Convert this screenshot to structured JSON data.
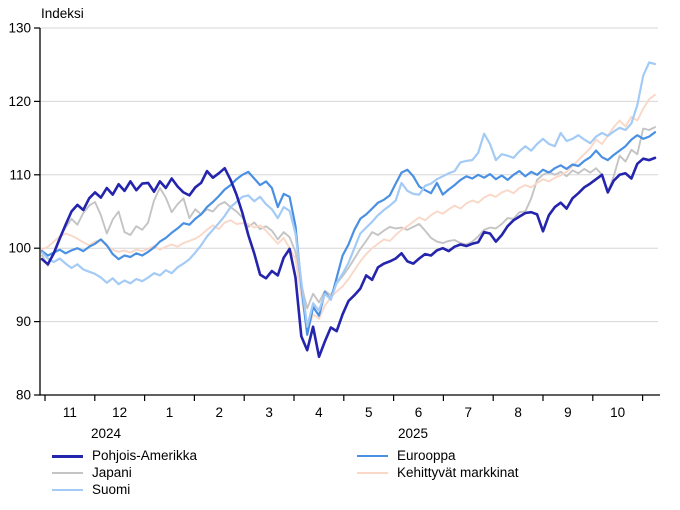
{
  "chart_data": {
    "type": "line",
    "title": "Indeksi",
    "grid": "horizontal",
    "legend_position": "bottom",
    "y_axis": {
      "min": 80,
      "max": 130,
      "step": 10,
      "tick_labels": [
        "80",
        "90",
        "100",
        "110",
        "120",
        "130"
      ]
    },
    "x_axis": {
      "month_labels": [
        "11",
        "12",
        "1",
        "2",
        "3",
        "4",
        "5",
        "6",
        "7",
        "8",
        "9",
        "10"
      ],
      "year_labels": [
        "2024",
        "2025"
      ]
    },
    "axis_color": "#000000",
    "grid_color": "#d6d6d6",
    "draw_order": [
      2,
      3,
      1,
      4,
      0
    ],
    "series": [
      {
        "name": "Pohjois-Amerikka",
        "color": "#2424ad",
        "width": 2.6,
        "values": [
          98.5,
          97.8,
          99.3,
          101.3,
          103.2,
          105.0,
          105.9,
          105.2,
          106.8,
          107.6,
          106.9,
          108.2,
          107.3,
          108.7,
          107.8,
          109.1,
          107.9,
          108.8,
          108.9,
          107.7,
          109.1,
          108.2,
          109.5,
          108.4,
          107.6,
          107.2,
          108.3,
          108.9,
          110.5,
          109.6,
          110.2,
          110.9,
          109.3,
          107.3,
          104.8,
          101.8,
          99.3,
          96.4,
          95.9,
          96.9,
          96.3,
          98.7,
          99.9,
          96.0,
          88.0,
          86.1,
          89.3,
          85.2,
          87.3,
          89.2,
          88.7,
          91.0,
          92.8,
          93.6,
          94.5,
          96.3,
          95.7,
          97.4,
          97.9,
          98.2,
          98.6,
          99.3,
          98.2,
          97.9,
          98.6,
          99.2,
          99.0,
          99.7,
          100.0,
          99.6,
          100.2,
          100.5,
          100.3,
          100.6,
          100.8,
          102.2,
          102.0,
          100.9,
          101.8,
          103.0,
          103.8,
          104.3,
          104.8,
          104.9,
          104.6,
          102.3,
          104.5,
          105.6,
          106.2,
          105.4,
          106.8,
          107.5,
          108.3,
          108.8,
          109.4,
          110.0,
          107.6,
          109.2,
          110.0,
          110.2,
          109.5,
          111.5,
          112.2,
          112.0,
          112.3
        ]
      },
      {
        "name": "Eurooppa",
        "color": "#4a90e2",
        "width": 2.2,
        "values": [
          99.6,
          99.0,
          99.4,
          99.8,
          99.3,
          99.7,
          100.0,
          99.6,
          100.2,
          100.6,
          101.2,
          100.4,
          99.2,
          98.5,
          99.0,
          98.8,
          99.3,
          99.0,
          99.5,
          100.1,
          100.9,
          101.4,
          102.1,
          102.7,
          103.4,
          103.2,
          104.0,
          104.6,
          105.6,
          106.3,
          107.1,
          108.0,
          108.6,
          109.4,
          110.0,
          110.4,
          109.5,
          108.6,
          109.1,
          108.2,
          105.6,
          107.4,
          107.0,
          103.0,
          95.0,
          88.2,
          92.0,
          90.8,
          94.0,
          93.0,
          96.0,
          99.0,
          100.5,
          102.5,
          104.0,
          104.6,
          105.4,
          106.2,
          106.6,
          107.2,
          108.8,
          110.3,
          110.7,
          109.8,
          108.4,
          107.9,
          107.5,
          108.9,
          107.3,
          108.0,
          108.6,
          109.3,
          109.8,
          109.5,
          110.0,
          109.6,
          110.1,
          109.4,
          109.9,
          109.3,
          110.0,
          110.5,
          109.8,
          110.4,
          110.0,
          110.7,
          110.3,
          110.9,
          111.3,
          110.8,
          111.4,
          111.2,
          111.9,
          112.4,
          113.3,
          112.4,
          112.0,
          112.7,
          113.3,
          113.9,
          114.8,
          115.4,
          114.9,
          115.2,
          115.8
        ]
      },
      {
        "name": "Japani",
        "color": "#c4c4c4",
        "width": 1.9,
        "values": [
          99.0,
          97.6,
          99.5,
          101.5,
          102.8,
          104.0,
          103.2,
          104.8,
          105.8,
          106.3,
          104.5,
          102.0,
          103.9,
          105.0,
          102.2,
          101.8,
          103.0,
          102.5,
          103.5,
          106.5,
          108.2,
          106.9,
          104.9,
          106.0,
          106.8,
          104.1,
          105.3,
          104.6,
          105.3,
          105.0,
          105.9,
          106.3,
          105.6,
          105.0,
          104.2,
          102.9,
          103.5,
          102.6,
          103.0,
          102.4,
          101.2,
          102.2,
          101.5,
          99.5,
          95.0,
          91.8,
          93.8,
          92.6,
          94.2,
          93.6,
          95.2,
          96.2,
          97.3,
          98.6,
          99.9,
          101.0,
          102.2,
          101.8,
          102.4,
          102.9,
          102.7,
          102.8,
          102.5,
          102.9,
          103.3,
          102.4,
          101.4,
          100.9,
          100.7,
          101.0,
          101.1,
          100.7,
          100.5,
          100.9,
          101.6,
          102.5,
          102.8,
          102.7,
          103.3,
          104.1,
          104.0,
          104.9,
          105.0,
          106.8,
          109.3,
          110.0,
          110.4,
          110.0,
          110.4,
          109.8,
          110.6,
          110.2,
          110.8,
          110.3,
          110.9,
          110.0,
          107.6,
          109.8,
          112.6,
          111.8,
          113.4,
          112.8,
          116.3,
          116.1,
          116.5
        ]
      },
      {
        "name": "Kehittyvät markkinat",
        "color": "#f9d8c8",
        "width": 1.9,
        "values": [
          99.8,
          100.2,
          100.9,
          101.6,
          102.0,
          101.7,
          101.3,
          100.8,
          100.4,
          100.9,
          101.1,
          100.3,
          99.8,
          99.5,
          99.7,
          99.4,
          99.8,
          99.6,
          99.9,
          100.3,
          99.8,
          100.2,
          100.5,
          100.2,
          100.7,
          101.0,
          101.3,
          101.8,
          102.5,
          103.1,
          102.6,
          103.5,
          103.8,
          103.3,
          103.4,
          103.3,
          102.8,
          103.1,
          102.4,
          101.5,
          100.6,
          101.4,
          100.0,
          98.5,
          93.5,
          88.6,
          91.0,
          90.4,
          92.2,
          93.3,
          94.1,
          94.8,
          95.8,
          97.0,
          98.2,
          99.2,
          100.0,
          100.6,
          101.2,
          101.0,
          101.8,
          102.5,
          103.0,
          103.6,
          104.2,
          103.8,
          104.5,
          105.0,
          104.7,
          105.3,
          105.8,
          105.4,
          106.1,
          106.5,
          106.2,
          106.9,
          107.3,
          107.0,
          107.6,
          107.9,
          107.5,
          108.2,
          108.6,
          108.3,
          108.9,
          109.4,
          109.1,
          109.6,
          109.9,
          110.4,
          111.2,
          112.0,
          112.8,
          113.6,
          114.8,
          114.2,
          115.3,
          116.5,
          117.4,
          116.6,
          117.9,
          117.4,
          119.0,
          120.3,
          120.9
        ]
      },
      {
        "name": "Suomi",
        "color": "#a4cbf6",
        "width": 2.2,
        "values": [
          99.4,
          98.6,
          98.1,
          98.6,
          97.9,
          97.3,
          97.8,
          97.1,
          96.8,
          96.5,
          96.0,
          95.3,
          95.9,
          95.1,
          95.6,
          95.2,
          95.8,
          95.5,
          96.0,
          96.6,
          96.3,
          97.0,
          96.6,
          97.4,
          97.9,
          98.5,
          99.4,
          100.4,
          101.6,
          102.5,
          103.4,
          104.4,
          105.6,
          106.3,
          107.0,
          107.2,
          106.4,
          107.0,
          106.0,
          105.3,
          104.1,
          105.6,
          105.1,
          102.0,
          95.5,
          89.3,
          92.5,
          91.5,
          93.8,
          93.0,
          95.3,
          96.5,
          98.0,
          100.0,
          102.0,
          102.8,
          103.6,
          104.5,
          105.2,
          105.8,
          106.5,
          108.9,
          107.8,
          107.4,
          107.3,
          108.5,
          108.8,
          109.4,
          109.8,
          110.2,
          110.5,
          111.7,
          111.9,
          112.0,
          113.0,
          115.6,
          114.2,
          112.0,
          112.8,
          112.6,
          112.3,
          113.2,
          113.9,
          113.3,
          114.2,
          114.9,
          114.2,
          113.9,
          115.7,
          114.6,
          114.9,
          115.4,
          114.8,
          114.3,
          115.2,
          115.7,
          115.3,
          115.9,
          116.4,
          116.1,
          117.0,
          119.5,
          123.5,
          125.3,
          125.1
        ]
      }
    ]
  }
}
